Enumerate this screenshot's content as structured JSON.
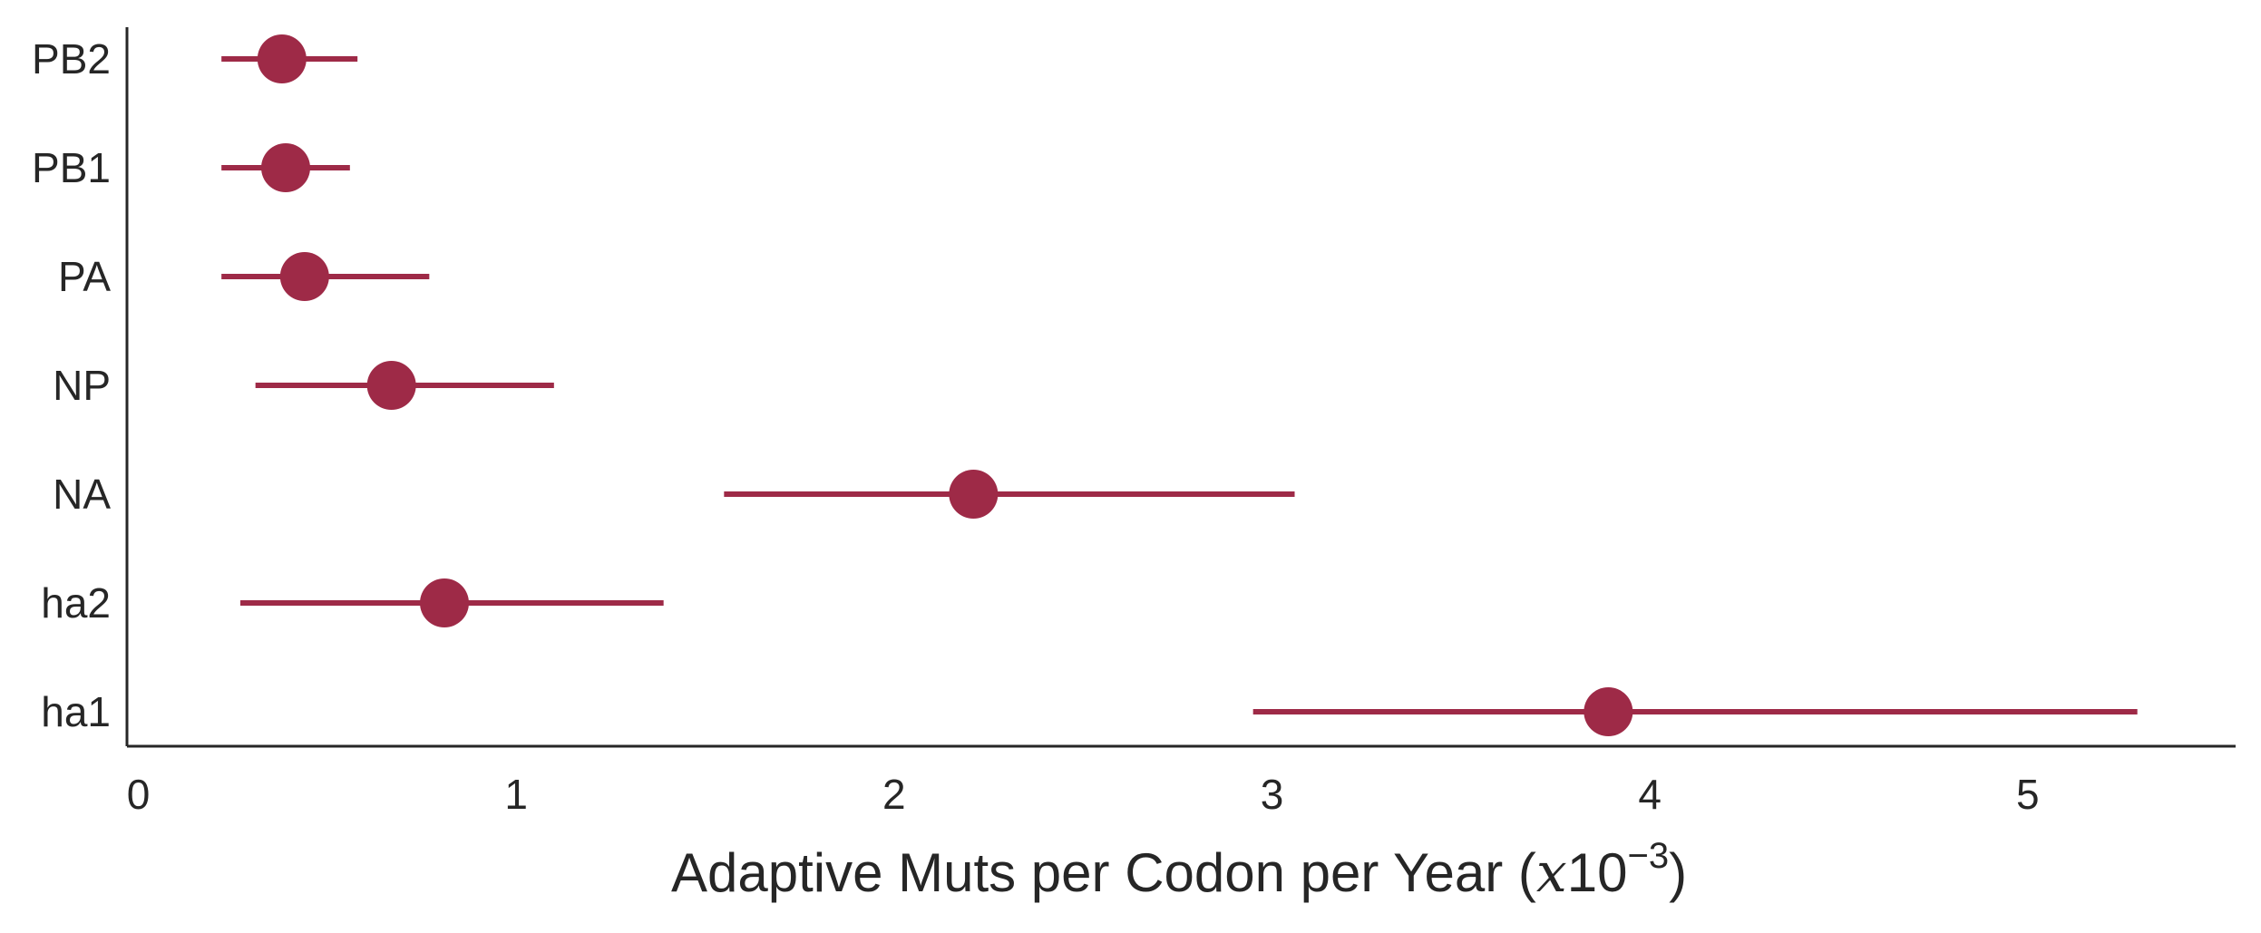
{
  "chart_data": {
    "type": "scatter",
    "orientation": "horizontal-errorbar",
    "categories": [
      "PB2",
      "PB1",
      "PA",
      "NP",
      "NA",
      "ha2",
      "ha1"
    ],
    "points": [
      {
        "label": "PB2",
        "value": 0.38,
        "low": 0.22,
        "high": 0.58
      },
      {
        "label": "PB1",
        "value": 0.39,
        "low": 0.22,
        "high": 0.56
      },
      {
        "label": "PA",
        "value": 0.44,
        "low": 0.22,
        "high": 0.77
      },
      {
        "label": "NP",
        "value": 0.67,
        "low": 0.31,
        "high": 1.1
      },
      {
        "label": "NA",
        "value": 2.21,
        "low": 1.55,
        "high": 3.06
      },
      {
        "label": "ha2",
        "value": 0.81,
        "low": 0.27,
        "high": 1.39
      },
      {
        "label": "ha1",
        "value": 3.89,
        "low": 2.95,
        "high": 5.29
      }
    ],
    "xlabel": {
      "main": "Adaptive Muts per Codon per Year (",
      "italic": "x",
      "base": "10",
      "exp": "−3",
      "close": ")"
    },
    "xticks": [
      "0",
      "1",
      "2",
      "3",
      "4",
      "5"
    ],
    "xlim": [
      -0.03,
      5.55
    ],
    "grid": false,
    "color": "#9e2a47"
  }
}
